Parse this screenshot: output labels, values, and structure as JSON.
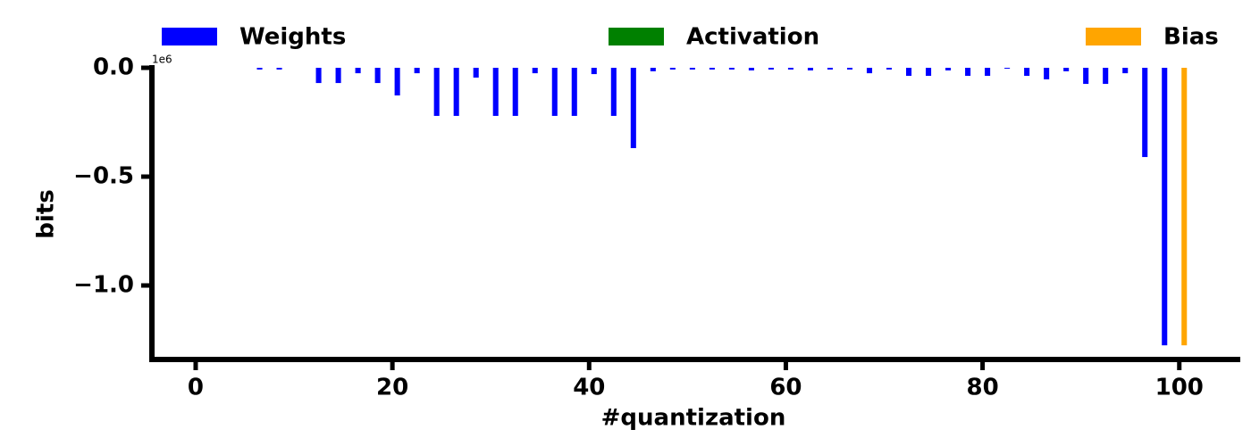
{
  "chart_data": {
    "type": "bar",
    "x_label": "#quantization",
    "y_label": "bits",
    "y_offset_label": "1e6",
    "xlim": [
      -4.45,
      106.2
    ],
    "ylim": [
      -1340000,
      0
    ],
    "xticks": [
      0,
      20,
      40,
      60,
      80,
      100
    ],
    "yticks": [
      {
        "value": 0,
        "label": "0.0"
      },
      {
        "value": -500000,
        "label": "−0.5"
      },
      {
        "value": -1000000,
        "label": "−1.0"
      }
    ],
    "bar_width": 0.55,
    "series": [
      {
        "name": "Weights",
        "color": "#0000ff",
        "x": [
          6.5,
          8.5,
          10.5,
          12.5,
          14.5,
          16.5,
          18.5,
          20.5,
          22.5,
          24.5,
          26.5,
          28.5,
          30.5,
          32.5,
          34.5,
          36.5,
          38.5,
          40.5,
          42.5,
          44.5,
          46.5,
          48.5,
          50.5,
          52.5,
          54.5,
          56.5,
          58.5,
          60.5,
          62.5,
          64.5,
          66.5,
          68.5,
          70.5,
          72.5,
          74.5,
          76.5,
          78.5,
          80.5,
          82.5,
          84.5,
          86.5,
          88.5,
          90.5,
          92.5,
          94.5,
          96.5,
          98.5
        ],
        "values": [
          -8000,
          -8000,
          0,
          -70000,
          -70000,
          -25000,
          -70000,
          -127000,
          -25000,
          -221000,
          -221000,
          -45000,
          -221000,
          -221000,
          -25000,
          -221000,
          -221000,
          -29000,
          -221000,
          -369000,
          -16000,
          -8000,
          -8000,
          -8000,
          -8000,
          -12000,
          -8000,
          -8000,
          -12000,
          -8000,
          -8000,
          -25000,
          -8000,
          -37000,
          -37000,
          -12000,
          -37000,
          -37000,
          -4000,
          -37000,
          -53000,
          -16000,
          -74000,
          -74000,
          -25000,
          -410000,
          -1275000
        ]
      },
      {
        "name": "Activation",
        "color": "#008000",
        "x": [],
        "values": []
      },
      {
        "name": "Bias",
        "color": "#ffa500",
        "x": [
          100.5
        ],
        "values": [
          -1275000
        ]
      }
    ]
  }
}
